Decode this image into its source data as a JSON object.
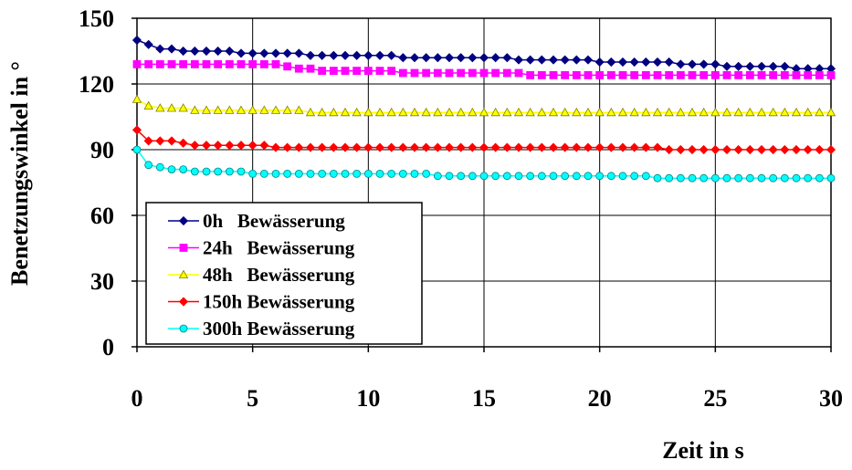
{
  "chart_data": {
    "type": "line",
    "xlabel": "Zeit in s",
    "ylabel": "Benetzungswinkel in °",
    "xlim": [
      0,
      30
    ],
    "ylim": [
      0,
      150
    ],
    "xticks": [
      0,
      5,
      10,
      15,
      20,
      25,
      30
    ],
    "yticks": [
      0,
      30,
      60,
      90,
      120,
      150
    ],
    "grid": true,
    "legend_position": "bottom-left",
    "x": [
      0,
      0.5,
      1,
      1.5,
      2,
      2.5,
      3,
      3.5,
      4,
      4.5,
      5,
      5.5,
      6,
      6.5,
      7,
      7.5,
      8,
      8.5,
      9,
      9.5,
      10,
      10.5,
      11,
      11.5,
      12,
      12.5,
      13,
      13.5,
      14,
      14.5,
      15,
      15.5,
      16,
      16.5,
      17,
      17.5,
      18,
      18.5,
      19,
      19.5,
      20,
      20.5,
      21,
      21.5,
      22,
      22.5,
      23,
      23.5,
      24,
      24.5,
      25,
      25.5,
      26,
      26.5,
      27,
      27.5,
      28,
      28.5,
      29,
      29.5,
      30
    ],
    "series": [
      {
        "name": "0h   Bewässerung",
        "color": "#000080",
        "marker": "diamond",
        "values": [
          140,
          138,
          136,
          136,
          135,
          135,
          135,
          135,
          135,
          134,
          134,
          134,
          134,
          134,
          134,
          133,
          133,
          133,
          133,
          133,
          133,
          133,
          133,
          132,
          132,
          132,
          132,
          132,
          132,
          132,
          132,
          132,
          132,
          131,
          131,
          131,
          131,
          131,
          131,
          131,
          130,
          130,
          130,
          130,
          130,
          130,
          130,
          129,
          129,
          129,
          129,
          128,
          128,
          128,
          128,
          128,
          128,
          127,
          127,
          127,
          127
        ]
      },
      {
        "name": "24h   Bewässerung",
        "color": "#FF00FF",
        "marker": "square",
        "values": [
          129,
          129,
          129,
          129,
          129,
          129,
          129,
          129,
          129,
          129,
          129,
          129,
          129,
          128,
          127,
          127,
          126,
          126,
          126,
          126,
          126,
          126,
          126,
          125,
          125,
          125,
          125,
          125,
          125,
          125,
          125,
          125,
          125,
          125,
          124,
          124,
          124,
          124,
          124,
          124,
          124,
          124,
          124,
          124,
          124,
          124,
          124,
          124,
          124,
          124,
          124,
          124,
          124,
          124,
          124,
          124,
          124,
          124,
          124,
          124,
          124
        ]
      },
      {
        "name": "48h   Bewässerung",
        "color": "#FFFF00",
        "marker": "triangle",
        "values": [
          113,
          110,
          109,
          109,
          109,
          108,
          108,
          108,
          108,
          108,
          108,
          108,
          108,
          108,
          108,
          107,
          107,
          107,
          107,
          107,
          107,
          107,
          107,
          107,
          107,
          107,
          107,
          107,
          107,
          107,
          107,
          107,
          107,
          107,
          107,
          107,
          107,
          107,
          107,
          107,
          107,
          107,
          107,
          107,
          107,
          107,
          107,
          107,
          107,
          107,
          107,
          107,
          107,
          107,
          107,
          107,
          107,
          107,
          107,
          107,
          107
        ]
      },
      {
        "name": "150h Bewässerung",
        "color": "#FF0000",
        "marker": "diamond",
        "values": [
          99,
          94,
          94,
          94,
          93,
          92,
          92,
          92,
          92,
          92,
          92,
          92,
          91,
          91,
          91,
          91,
          91,
          91,
          91,
          91,
          91,
          91,
          91,
          91,
          91,
          91,
          91,
          91,
          91,
          91,
          91,
          91,
          91,
          91,
          91,
          91,
          91,
          91,
          91,
          91,
          91,
          91,
          91,
          91,
          91,
          91,
          90,
          90,
          90,
          90,
          90,
          90,
          90,
          90,
          90,
          90,
          90,
          90,
          90,
          90,
          90
        ]
      },
      {
        "name": "300h Bewässerung",
        "color": "#00FFFF",
        "marker": "circle",
        "values": [
          90,
          83,
          82,
          81,
          81,
          80,
          80,
          80,
          80,
          80,
          79,
          79,
          79,
          79,
          79,
          79,
          79,
          79,
          79,
          79,
          79,
          79,
          79,
          79,
          79,
          79,
          78,
          78,
          78,
          78,
          78,
          78,
          78,
          78,
          78,
          78,
          78,
          78,
          78,
          78,
          78,
          78,
          78,
          78,
          78,
          77,
          77,
          77,
          77,
          77,
          77,
          77,
          77,
          77,
          77,
          77,
          77,
          77,
          77,
          77,
          77
        ]
      }
    ]
  }
}
